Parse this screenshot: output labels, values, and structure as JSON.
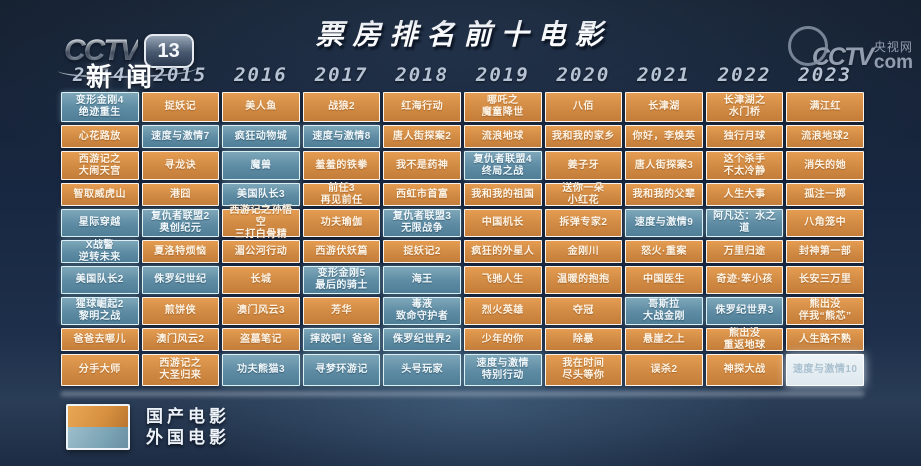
{
  "channel": {
    "logo_word": "CCTV",
    "logo_number": "13",
    "logo_sub": "新闻"
  },
  "watermark": {
    "logo": "CCTV",
    "site": "央视网",
    "domain": "com"
  },
  "title": "票房排名前十电影",
  "legend": {
    "items": [
      {
        "label": "国产电影",
        "color": "#d9944c"
      },
      {
        "label": "外国电影",
        "color": "#6f9db0"
      }
    ]
  },
  "colors": {
    "domestic": "#d9944c",
    "foreign": "#5f8da4",
    "faded": "#e3ecf0"
  },
  "chart_data": {
    "type": "table",
    "title": "票房排名前十电影",
    "years": [
      "2014",
      "2015",
      "2016",
      "2017",
      "2018",
      "2019",
      "2020",
      "2021",
      "2022",
      "2023"
    ],
    "columns": [
      {
        "year": "2014",
        "films": [
          {
            "title": "变形金刚4\n绝迹重生",
            "origin": "foreign"
          },
          {
            "title": "心花路放",
            "origin": "domestic"
          },
          {
            "title": "西游记之\n大闹天宫",
            "origin": "domestic"
          },
          {
            "title": "智取威虎山",
            "origin": "domestic"
          },
          {
            "title": "星际穿越",
            "origin": "foreign"
          },
          {
            "title": "X战警\n逆转未来",
            "origin": "foreign"
          },
          {
            "title": "美国队长2",
            "origin": "foreign"
          },
          {
            "title": "猩球崛起2\n黎明之战",
            "origin": "foreign"
          },
          {
            "title": "爸爸去哪儿",
            "origin": "domestic"
          },
          {
            "title": "分手大师",
            "origin": "domestic"
          }
        ]
      },
      {
        "year": "2015",
        "films": [
          {
            "title": "捉妖记",
            "origin": "domestic"
          },
          {
            "title": "速度与激情7",
            "origin": "foreign"
          },
          {
            "title": "寻龙诀",
            "origin": "domestic"
          },
          {
            "title": "港囧",
            "origin": "domestic"
          },
          {
            "title": "复仇者联盟2\n奥创纪元",
            "origin": "foreign"
          },
          {
            "title": "夏洛特烦恼",
            "origin": "domestic"
          },
          {
            "title": "侏罗纪世纪",
            "origin": "foreign"
          },
          {
            "title": "煎饼侠",
            "origin": "domestic"
          },
          {
            "title": "澳门风云2",
            "origin": "domestic"
          },
          {
            "title": "西游记之\n大圣归来",
            "origin": "domestic"
          }
        ]
      },
      {
        "year": "2016",
        "films": [
          {
            "title": "美人鱼",
            "origin": "domestic"
          },
          {
            "title": "疯狂动物城",
            "origin": "foreign"
          },
          {
            "title": "魔兽",
            "origin": "foreign"
          },
          {
            "title": "美国队长3",
            "origin": "foreign"
          },
          {
            "title": "西游记之孙悟空\n三打白骨精",
            "origin": "domestic"
          },
          {
            "title": "湄公河行动",
            "origin": "domestic"
          },
          {
            "title": "长城",
            "origin": "domestic"
          },
          {
            "title": "澳门风云3",
            "origin": "domestic"
          },
          {
            "title": "盗墓笔记",
            "origin": "domestic"
          },
          {
            "title": "功夫熊猫3",
            "origin": "foreign"
          }
        ]
      },
      {
        "year": "2017",
        "films": [
          {
            "title": "战狼2",
            "origin": "domestic"
          },
          {
            "title": "速度与激情8",
            "origin": "foreign"
          },
          {
            "title": "羞羞的铁拳",
            "origin": "domestic"
          },
          {
            "title": "前任3\n再见前任",
            "origin": "domestic"
          },
          {
            "title": "功夫瑜伽",
            "origin": "domestic"
          },
          {
            "title": "西游伏妖篇",
            "origin": "domestic"
          },
          {
            "title": "变形金刚5\n最后的骑士",
            "origin": "foreign"
          },
          {
            "title": "芳华",
            "origin": "domestic"
          },
          {
            "title": "摔跤吧！爸爸",
            "origin": "foreign"
          },
          {
            "title": "寻梦环游记",
            "origin": "foreign"
          }
        ]
      },
      {
        "year": "2018",
        "films": [
          {
            "title": "红海行动",
            "origin": "domestic"
          },
          {
            "title": "唐人街探案2",
            "origin": "domestic"
          },
          {
            "title": "我不是药神",
            "origin": "domestic"
          },
          {
            "title": "西虹市首富",
            "origin": "domestic"
          },
          {
            "title": "复仇者联盟3\n无限战争",
            "origin": "foreign"
          },
          {
            "title": "捉妖记2",
            "origin": "domestic"
          },
          {
            "title": "海王",
            "origin": "foreign"
          },
          {
            "title": "毒液\n致命守护者",
            "origin": "foreign"
          },
          {
            "title": "侏罗纪世界2",
            "origin": "foreign"
          },
          {
            "title": "头号玩家",
            "origin": "foreign"
          }
        ]
      },
      {
        "year": "2019",
        "films": [
          {
            "title": "哪吒之\n魔童降世",
            "origin": "domestic"
          },
          {
            "title": "流浪地球",
            "origin": "domestic"
          },
          {
            "title": "复仇者联盟4\n终局之战",
            "origin": "foreign"
          },
          {
            "title": "我和我的祖国",
            "origin": "domestic"
          },
          {
            "title": "中国机长",
            "origin": "domestic"
          },
          {
            "title": "疯狂的外星人",
            "origin": "domestic"
          },
          {
            "title": "飞驰人生",
            "origin": "domestic"
          },
          {
            "title": "烈火英雄",
            "origin": "domestic"
          },
          {
            "title": "少年的你",
            "origin": "domestic"
          },
          {
            "title": "速度与激情\n特别行动",
            "origin": "foreign"
          }
        ]
      },
      {
        "year": "2020",
        "films": [
          {
            "title": "八佰",
            "origin": "domestic"
          },
          {
            "title": "我和我的家乡",
            "origin": "domestic"
          },
          {
            "title": "姜子牙",
            "origin": "domestic"
          },
          {
            "title": "送你一朵\n小红花",
            "origin": "domestic"
          },
          {
            "title": "拆弹专家2",
            "origin": "domestic"
          },
          {
            "title": "金刚川",
            "origin": "domestic"
          },
          {
            "title": "温暖的抱抱",
            "origin": "domestic"
          },
          {
            "title": "夺冠",
            "origin": "domestic"
          },
          {
            "title": "除暴",
            "origin": "domestic"
          },
          {
            "title": "我在时间\n尽头等你",
            "origin": "domestic"
          }
        ]
      },
      {
        "year": "2021",
        "films": [
          {
            "title": "长津湖",
            "origin": "domestic"
          },
          {
            "title": "你好，李焕英",
            "origin": "domestic"
          },
          {
            "title": "唐人街探案3",
            "origin": "domestic"
          },
          {
            "title": "我和我的父辈",
            "origin": "domestic"
          },
          {
            "title": "速度与激情9",
            "origin": "foreign"
          },
          {
            "title": "怒火·重案",
            "origin": "domestic"
          },
          {
            "title": "中国医生",
            "origin": "domestic"
          },
          {
            "title": "哥斯拉\n大战金刚",
            "origin": "foreign"
          },
          {
            "title": "悬崖之上",
            "origin": "domestic"
          },
          {
            "title": "误杀2",
            "origin": "domestic"
          }
        ]
      },
      {
        "year": "2022",
        "films": [
          {
            "title": "长津湖之\n水门桥",
            "origin": "domestic"
          },
          {
            "title": "独行月球",
            "origin": "domestic"
          },
          {
            "title": "这个杀手\n不太冷静",
            "origin": "domestic"
          },
          {
            "title": "人生大事",
            "origin": "domestic"
          },
          {
            "title": "阿凡达：水之道",
            "origin": "foreign"
          },
          {
            "title": "万里归途",
            "origin": "domestic"
          },
          {
            "title": "奇迹·笨小孩",
            "origin": "domestic"
          },
          {
            "title": "侏罗纪世界3",
            "origin": "foreign"
          },
          {
            "title": "熊出没\n重返地球",
            "origin": "domestic"
          },
          {
            "title": "神探大战",
            "origin": "domestic"
          }
        ]
      },
      {
        "year": "2023",
        "films": [
          {
            "title": "满江红",
            "origin": "domestic"
          },
          {
            "title": "流浪地球2",
            "origin": "domestic"
          },
          {
            "title": "消失的她",
            "origin": "domestic"
          },
          {
            "title": "孤注一掷",
            "origin": "domestic"
          },
          {
            "title": "八角笼中",
            "origin": "domestic"
          },
          {
            "title": "封神第一部",
            "origin": "domestic"
          },
          {
            "title": "长安三万里",
            "origin": "domestic"
          },
          {
            "title": "熊出没\n伴我“熊芯”",
            "origin": "domestic"
          },
          {
            "title": "人生路不熟",
            "origin": "domestic"
          },
          {
            "title": "速度与激情10",
            "origin": "foreign",
            "faded": true
          }
        ]
      }
    ]
  }
}
